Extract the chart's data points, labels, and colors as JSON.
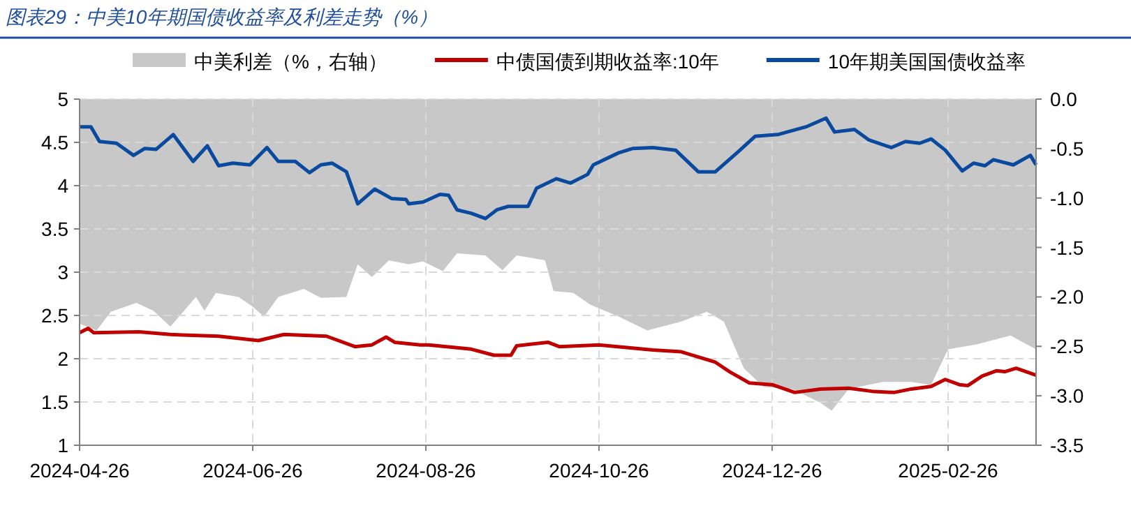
{
  "chart_data": {
    "type": "line",
    "title": "图表29：中美10年期国债收益率及利差走势（%）",
    "xlim": [
      "2024-04-26",
      "2025-03-29"
    ],
    "xticks": [
      "2024-04-26",
      "2024-06-26",
      "2024-08-26",
      "2024-10-26",
      "2024-12-26",
      "2025-02-26"
    ],
    "ylim": [
      1,
      5
    ],
    "yticks": [
      1,
      1.5,
      2,
      2.5,
      3,
      3.5,
      4,
      4.5,
      5
    ],
    "y2lim": [
      -3.5,
      0
    ],
    "y2ticks": [
      {
        "value": -3.5,
        "label": "-3.5"
      },
      {
        "value": -3,
        "label": "-3.0"
      },
      {
        "value": -2.5,
        "label": "-2.5"
      },
      {
        "value": -2,
        "label": "-2.0"
      },
      {
        "value": -1.5,
        "label": "-1.5"
      },
      {
        "value": -1,
        "label": "-1.0"
      },
      {
        "value": -0.5,
        "label": "-0.5"
      },
      {
        "value": 0,
        "label": "0.0"
      }
    ],
    "grid": true,
    "legend": "top",
    "line_style": "solid",
    "marker": "none",
    "series": [
      {
        "name": "中美利差（%，右轴）",
        "type": "area",
        "axis": "y2",
        "color": "#c8c8c8",
        "x": [
          "2024-04-26",
          "2024-05-02",
          "2024-05-07",
          "2024-05-16",
          "2024-05-22",
          "2024-05-28",
          "2024-06-06",
          "2024-06-09",
          "2024-06-13",
          "2024-06-21",
          "2024-06-26",
          "2024-06-30",
          "2024-07-05",
          "2024-07-14",
          "2024-07-20",
          "2024-07-29",
          "2024-08-02",
          "2024-08-07",
          "2024-08-13",
          "2024-08-20",
          "2024-08-25",
          "2024-09-01",
          "2024-09-06",
          "2024-09-16",
          "2024-09-22",
          "2024-09-27",
          "2024-10-07",
          "2024-10-10",
          "2024-10-17",
          "2024-10-23",
          "2024-11-02",
          "2024-11-12",
          "2024-11-24",
          "2024-12-03",
          "2024-12-09",
          "2024-12-16",
          "2024-12-23",
          "2025-01-02",
          "2025-01-12",
          "2025-01-16",
          "2025-01-22",
          "2025-02-03",
          "2025-02-13",
          "2025-02-20",
          "2025-02-26",
          "2025-03-08",
          "2025-03-20",
          "2025-03-29"
        ],
        "values": [
          -2.27,
          -2.34,
          -2.15,
          -2.06,
          -2.14,
          -2.3,
          -2.0,
          -2.14,
          -1.96,
          -2.0,
          -2.1,
          -2.2,
          -2.0,
          -1.92,
          -2.01,
          -2.0,
          -1.67,
          -1.8,
          -1.63,
          -1.67,
          -1.64,
          -1.74,
          -1.56,
          -1.58,
          -1.73,
          -1.58,
          -1.63,
          -1.94,
          -1.96,
          -2.08,
          -2.2,
          -2.34,
          -2.25,
          -2.15,
          -2.25,
          -2.72,
          -2.91,
          -2.93,
          -3.07,
          -3.15,
          -2.93,
          -2.86,
          -2.86,
          -2.89,
          -2.53,
          -2.48,
          -2.39,
          -2.53
        ]
      },
      {
        "name": "中债国债到期收益率:10年",
        "color": "#c00000",
        "x": [
          "2024-04-26",
          "2024-04-29",
          "2024-05-01",
          "2024-05-17",
          "2024-05-28",
          "2024-06-14",
          "2024-06-28",
          "2024-07-07",
          "2024-07-22",
          "2024-08-01",
          "2024-08-07",
          "2024-08-12",
          "2024-08-15",
          "2024-08-24",
          "2024-08-27",
          "2024-09-11",
          "2024-09-19",
          "2024-09-25",
          "2024-09-27",
          "2024-10-08",
          "2024-10-12",
          "2024-10-26",
          "2024-11-14",
          "2024-11-24",
          "2024-12-06",
          "2024-12-11",
          "2024-12-18",
          "2024-12-26",
          "2025-01-03",
          "2025-01-12",
          "2025-01-22",
          "2025-01-31",
          "2025-02-07",
          "2025-02-13",
          "2025-02-20",
          "2025-02-25",
          "2025-03-02",
          "2025-03-05",
          "2025-03-10",
          "2025-03-15",
          "2025-03-18",
          "2025-03-22",
          "2025-03-29"
        ],
        "values": [
          2.3,
          2.35,
          2.3,
          2.31,
          2.28,
          2.26,
          2.21,
          2.28,
          2.26,
          2.14,
          2.16,
          2.25,
          2.19,
          2.16,
          2.16,
          2.11,
          2.04,
          2.04,
          2.15,
          2.19,
          2.14,
          2.16,
          2.1,
          2.08,
          1.96,
          1.85,
          1.72,
          1.7,
          1.61,
          1.65,
          1.66,
          1.62,
          1.61,
          1.65,
          1.68,
          1.76,
          1.7,
          1.69,
          1.8,
          1.86,
          1.85,
          1.89,
          1.81
        ]
      },
      {
        "name": "10年期美国国债收益率",
        "color": "#0a4a9e",
        "x": [
          "2024-04-26",
          "2024-04-30",
          "2024-05-03",
          "2024-05-09",
          "2024-05-15",
          "2024-05-19",
          "2024-05-23",
          "2024-05-29",
          "2024-06-05",
          "2024-06-10",
          "2024-06-14",
          "2024-06-19",
          "2024-06-25",
          "2024-07-01",
          "2024-07-05",
          "2024-07-11",
          "2024-07-16",
          "2024-07-20",
          "2024-07-24",
          "2024-07-29",
          "2024-08-02",
          "2024-08-08",
          "2024-08-14",
          "2024-08-19",
          "2024-08-20",
          "2024-08-25",
          "2024-08-31",
          "2024-09-03",
          "2024-09-06",
          "2024-09-11",
          "2024-09-16",
          "2024-09-20",
          "2024-09-24",
          "2024-10-01",
          "2024-10-04",
          "2024-10-11",
          "2024-10-16",
          "2024-10-22",
          "2024-10-24",
          "2024-11-02",
          "2024-11-07",
          "2024-11-14",
          "2024-11-22",
          "2024-11-30",
          "2024-12-06",
          "2024-12-14",
          "2024-12-20",
          "2024-12-28",
          "2025-01-07",
          "2025-01-14",
          "2025-01-17",
          "2025-01-24",
          "2025-01-29",
          "2025-02-06",
          "2025-02-11",
          "2025-02-16",
          "2025-02-20",
          "2025-02-25",
          "2025-03-03",
          "2025-03-07",
          "2025-03-11",
          "2025-03-14",
          "2025-03-21",
          "2025-03-27",
          "2025-03-29"
        ],
        "values": [
          4.68,
          4.68,
          4.51,
          4.49,
          4.35,
          4.43,
          4.42,
          4.59,
          4.28,
          4.46,
          4.23,
          4.26,
          4.24,
          4.44,
          4.28,
          4.28,
          4.15,
          4.24,
          4.26,
          4.16,
          3.79,
          3.96,
          3.85,
          3.84,
          3.79,
          3.81,
          3.9,
          3.89,
          3.72,
          3.68,
          3.62,
          3.72,
          3.76,
          3.76,
          3.97,
          4.08,
          4.03,
          4.13,
          4.24,
          4.38,
          4.43,
          4.44,
          4.41,
          4.16,
          4.16,
          4.39,
          4.57,
          4.59,
          4.68,
          4.78,
          4.62,
          4.65,
          4.53,
          4.44,
          4.51,
          4.49,
          4.54,
          4.41,
          4.17,
          4.26,
          4.23,
          4.3,
          4.24,
          4.35,
          4.24
        ]
      }
    ]
  }
}
